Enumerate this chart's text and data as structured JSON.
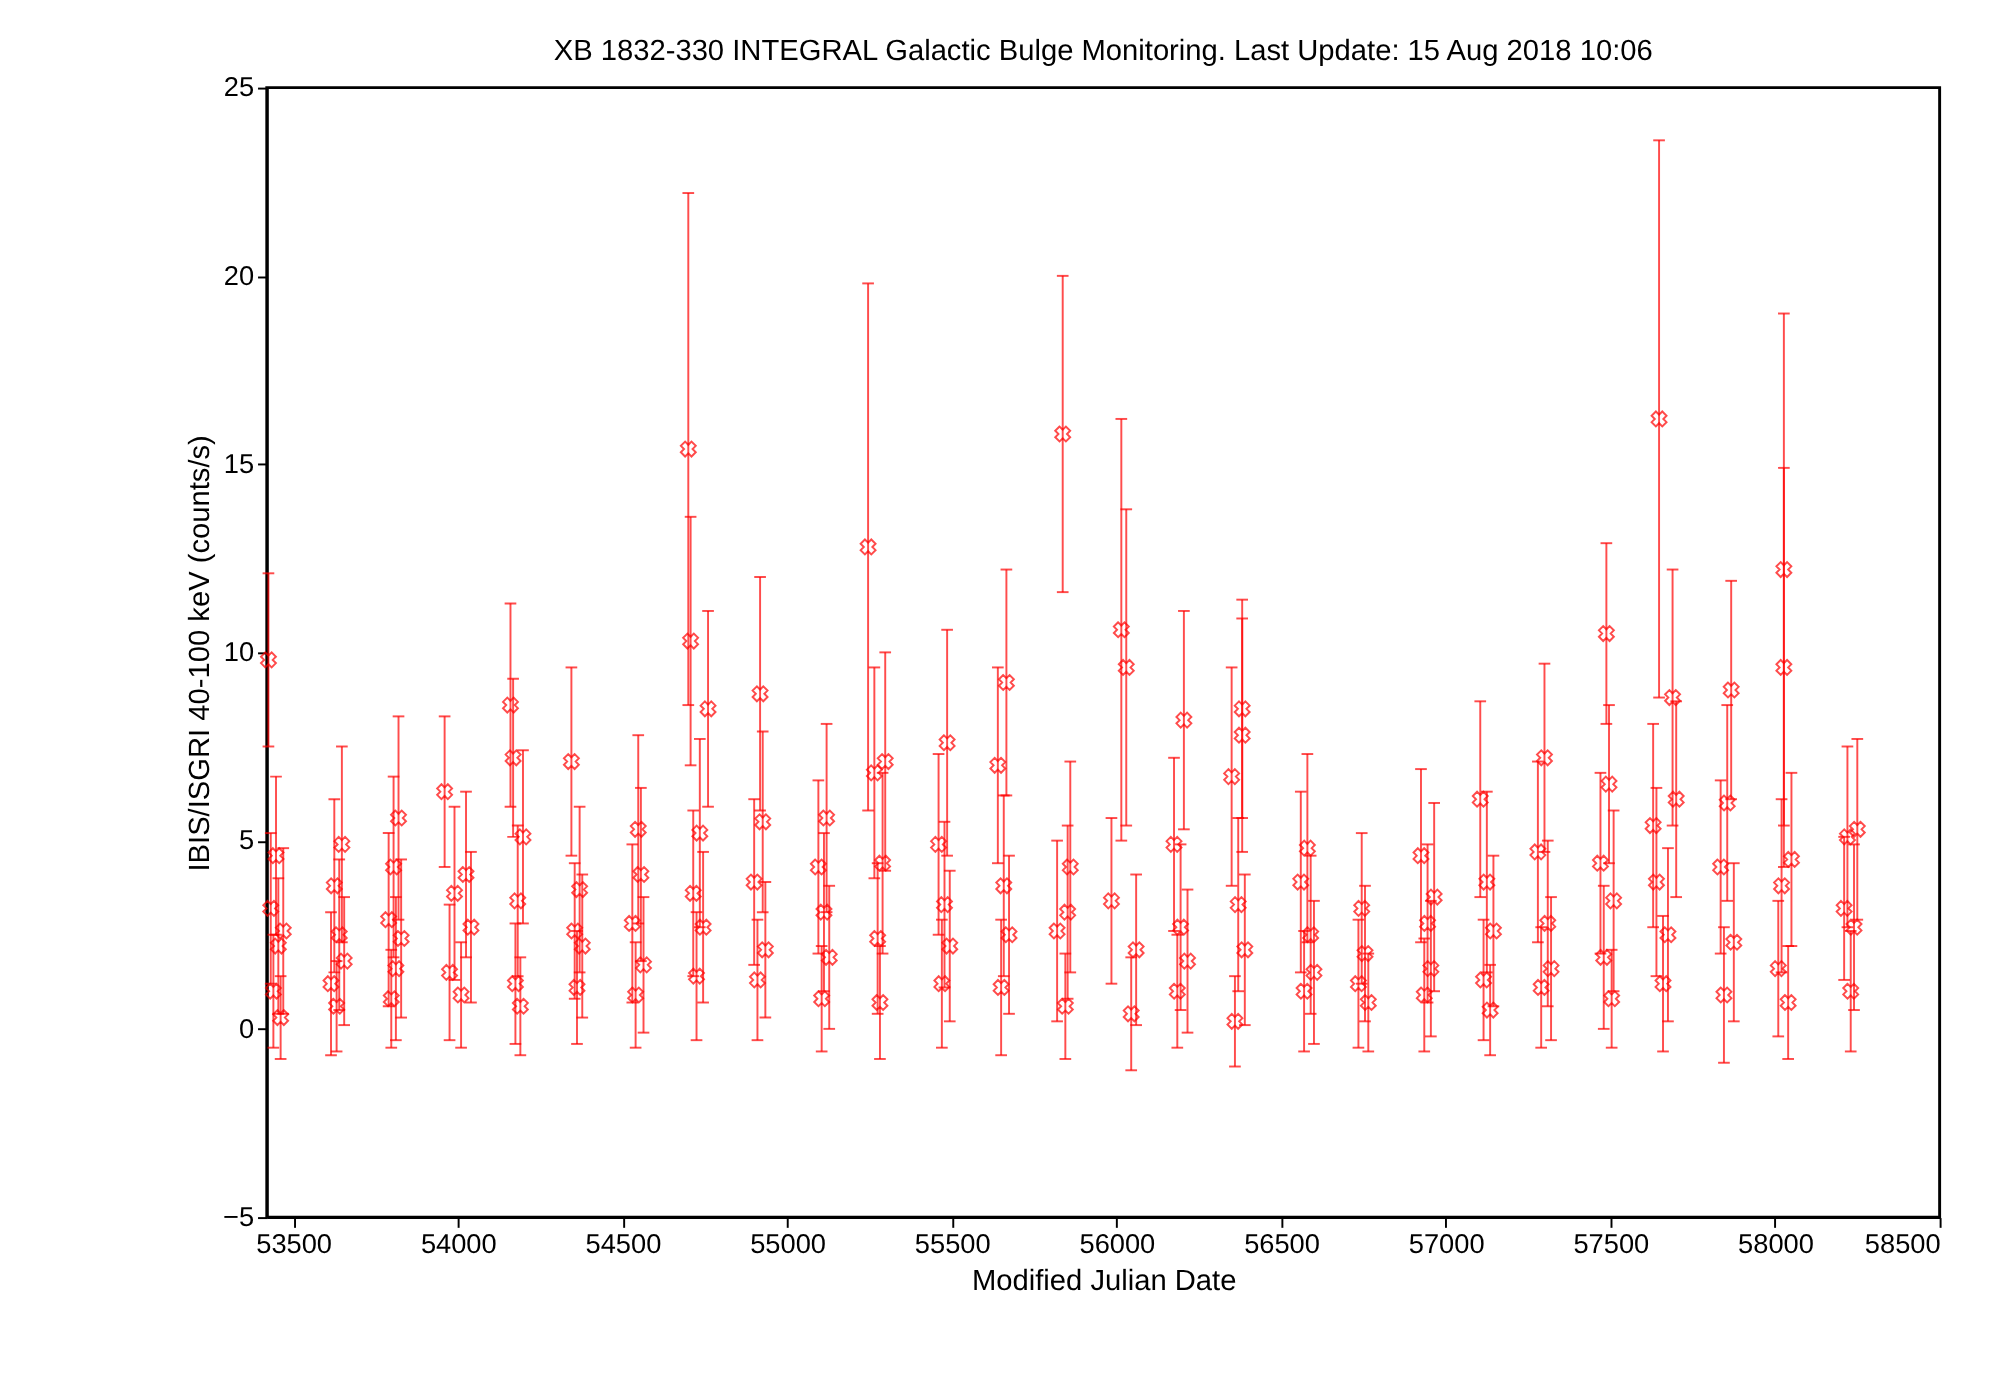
{
  "chart_data": {
    "type": "scatter",
    "title": "XB 1832-330   INTEGRAL Galactic Bulge Monitoring.  Last Update: 15 Aug 2018 10:06",
    "xlabel": "Modified Julian Date",
    "ylabel": "IBIS/ISGRI 40-100 keV (counts/s)",
    "xlim": [
      53420,
      58500
    ],
    "ylim": [
      -5,
      25
    ],
    "xticks": [
      53500,
      54000,
      54500,
      55000,
      55500,
      56000,
      56500,
      57000,
      57500,
      58000,
      58500
    ],
    "yticks": [
      -5,
      0,
      5,
      10,
      15,
      20,
      25
    ],
    "grid": false,
    "marker": "cross",
    "series": [
      {
        "color": "#ff0000",
        "x": [
          53425,
          53432,
          53440,
          53448,
          53455,
          53462,
          53470,
          53615,
          53625,
          53632,
          53640,
          53648,
          53655,
          53790,
          53798,
          53805,
          53812,
          53820,
          53828,
          53960,
          53975,
          53990,
          54010,
          54025,
          54040,
          54160,
          54168,
          54175,
          54182,
          54190,
          54198,
          54345,
          54355,
          54362,
          54370,
          54378,
          54530,
          54540,
          54548,
          54556,
          54564,
          54700,
          54707,
          54715,
          54725,
          54735,
          54745,
          54760,
          54900,
          54910,
          54918,
          54926,
          54934,
          55095,
          55105,
          55112,
          55120,
          55128,
          55246,
          55265,
          55275,
          55282,
          55290,
          55298,
          55460,
          55470,
          55478,
          55486,
          55494,
          55640,
          55650,
          55658,
          55666,
          55674,
          55820,
          55837,
          55845,
          55852,
          55860,
          55985,
          56015,
          56030,
          56045,
          56060,
          56175,
          56185,
          56195,
          56205,
          56216,
          56350,
          56360,
          56370,
          56382,
          56382,
          56390,
          56560,
          56570,
          56580,
          56590,
          56600,
          56735,
          56745,
          56755,
          56765,
          56925,
          56935,
          56945,
          56955,
          56965,
          57105,
          57115,
          57125,
          57135,
          57145,
          57280,
          57290,
          57300,
          57310,
          57320,
          57470,
          57480,
          57488,
          57496,
          57504,
          57510,
          57630,
          57640,
          57648,
          57660,
          57689,
          57675,
          57700,
          57835,
          57845,
          57855,
          57867,
          57875,
          58010,
          58020,
          58027,
          58027,
          58040,
          58050,
          58210,
          58220,
          58230,
          58240,
          58250
        ],
        "values": [
          9.8,
          3.2,
          1.0,
          4.6,
          2.2,
          0.3,
          2.6,
          1.2,
          3.8,
          0.6,
          2.5,
          4.9,
          1.8,
          2.9,
          0.8,
          4.3,
          1.6,
          5.6,
          2.4,
          6.3,
          1.5,
          3.6,
          0.9,
          4.1,
          2.7,
          8.6,
          7.2,
          1.2,
          3.4,
          0.6,
          5.1,
          7.1,
          2.6,
          1.1,
          3.7,
          2.2,
          2.8,
          0.9,
          5.3,
          4.1,
          1.7,
          15.4,
          10.3,
          3.6,
          1.4,
          5.2,
          2.7,
          8.5,
          3.9,
          1.3,
          8.9,
          5.5,
          2.1,
          4.3,
          0.8,
          3.1,
          5.6,
          1.9,
          12.8,
          6.8,
          2.4,
          0.7,
          4.4,
          7.1,
          4.9,
          1.2,
          3.3,
          7.6,
          2.2,
          7.0,
          1.1,
          3.8,
          9.2,
          2.5,
          2.6,
          15.8,
          0.6,
          3.1,
          4.3,
          3.4,
          10.6,
          9.6,
          0.4,
          2.1,
          4.9,
          1.0,
          2.7,
          8.2,
          1.8,
          6.7,
          0.2,
          3.3,
          8.5,
          7.8,
          2.1,
          3.9,
          1.0,
          4.8,
          2.5,
          1.5,
          1.2,
          3.2,
          2.0,
          0.7,
          4.6,
          0.9,
          2.8,
          1.6,
          3.5,
          6.1,
          1.3,
          3.9,
          0.5,
          2.6,
          4.7,
          1.1,
          7.2,
          2.8,
          1.6,
          4.4,
          1.9,
          10.5,
          6.5,
          0.8,
          3.4,
          5.4,
          3.9,
          16.2,
          1.2,
          8.8,
          2.5,
          6.1,
          4.3,
          0.9,
          6.0,
          9.0,
          2.3,
          1.6,
          3.8,
          12.2,
          9.6,
          0.7,
          4.5,
          3.2,
          5.1,
          1.0,
          2.7,
          5.3
        ],
        "errors": [
          2.3,
          2.0,
          1.5,
          2.1,
          1.8,
          1.1,
          2.2,
          1.9,
          2.3,
          1.2,
          2.0,
          2.6,
          1.7,
          2.3,
          1.3,
          2.4,
          1.9,
          2.7,
          2.1,
          2.0,
          1.8,
          2.3,
          1.4,
          2.2,
          2.0,
          2.7,
          2.1,
          1.6,
          2.0,
          1.3,
          2.3,
          2.5,
          1.8,
          1.5,
          2.2,
          1.9,
          2.1,
          1.4,
          2.5,
          2.3,
          1.8,
          6.8,
          3.3,
          2.2,
          1.7,
          2.5,
          2.0,
          2.6,
          2.2,
          1.6,
          3.1,
          2.4,
          1.8,
          2.3,
          1.4,
          2.1,
          2.5,
          1.9,
          7.0,
          2.8,
          2.0,
          1.5,
          2.4,
          2.9,
          2.4,
          1.7,
          2.2,
          3.0,
          2.0,
          2.6,
          1.8,
          2.4,
          3.0,
          2.1,
          2.4,
          4.2,
          1.4,
          2.3,
          2.8,
          2.2,
          5.6,
          4.2,
          1.5,
          2.0,
          2.3,
          1.5,
          2.2,
          2.9,
          1.9,
          2.9,
          1.2,
          2.3,
          2.9,
          3.1,
          2.0,
          2.4,
          1.6,
          2.5,
          2.1,
          1.9,
          1.7,
          2.0,
          1.8,
          1.3,
          2.3,
          1.5,
          2.1,
          1.8,
          2.5,
          2.6,
          1.6,
          2.4,
          1.2,
          2.0,
          2.4,
          1.6,
          2.5,
          2.2,
          1.9,
          2.4,
          1.9,
          2.4,
          2.1,
          1.3,
          2.4,
          2.7,
          2.5,
          7.4,
          1.8,
          3.4,
          2.3,
          2.6,
          2.3,
          1.8,
          2.6,
          2.9,
          2.1,
          1.8,
          2.3,
          6.8,
          5.3,
          1.5,
          2.3,
          1.9,
          2.4,
          1.6,
          2.2,
          2.4
        ]
      }
    ]
  }
}
